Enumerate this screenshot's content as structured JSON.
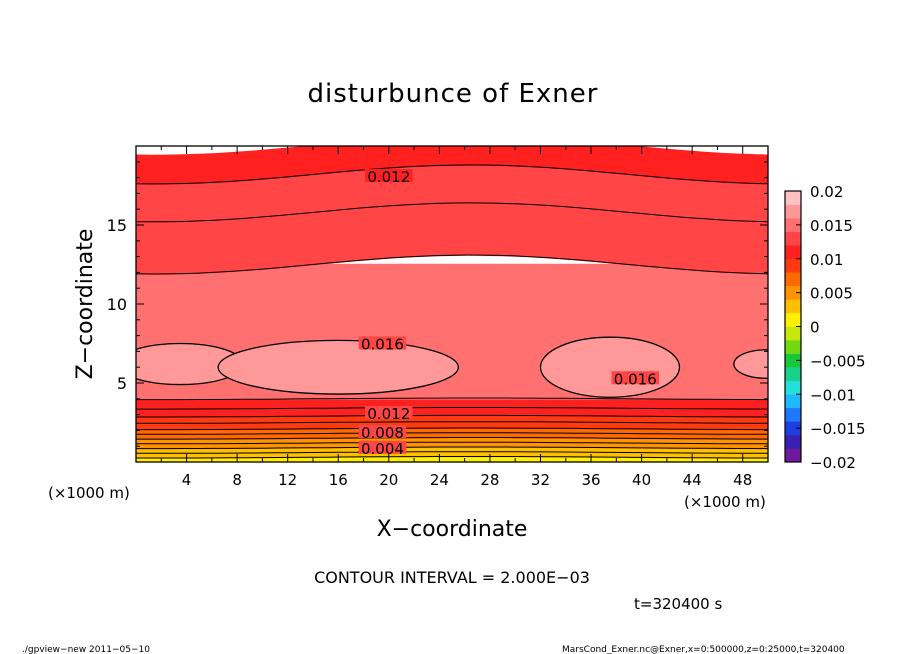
{
  "chart_data": {
    "type": "heatmap",
    "title": "disturbunce of Exner",
    "xlabel": "X−coordinate",
    "ylabel": "Z−coordinate",
    "x_unit_left": "(×1000 m)",
    "x_unit_right": "(×1000 m)",
    "xlim": [
      0,
      50
    ],
    "ylim": [
      0,
      20
    ],
    "x_ticks": [
      4,
      8,
      12,
      16,
      20,
      24,
      28,
      32,
      36,
      40,
      44,
      48
    ],
    "y_ticks": [
      5,
      10,
      15
    ],
    "contour_interval_text": "CONTOUR INTERVAL = 2.000E−03",
    "time_text": "t=320400 s",
    "contour_labels": [
      {
        "text": "0.012",
        "x": 20.0,
        "z": 18.1
      },
      {
        "text": "0.016",
        "x": 19.5,
        "z": 7.5
      },
      {
        "text": "0.016",
        "x": 39.5,
        "z": 5.3
      },
      {
        "text": "0.012",
        "x": 20.0,
        "z": 3.1
      },
      {
        "text": "0.008",
        "x": 19.5,
        "z": 1.9
      },
      {
        "text": "0.004",
        "x": 19.5,
        "z": 0.9
      }
    ],
    "field_bands": [
      {
        "z": [
          0.0,
          0.3
        ],
        "value": 0.0015
      },
      {
        "z": [
          0.3,
          0.6
        ],
        "value": 0.0025
      },
      {
        "z": [
          0.6,
          0.9
        ],
        "value": 0.0035
      },
      {
        "z": [
          0.9,
          1.2
        ],
        "value": 0.0045
      },
      {
        "z": [
          1.2,
          1.5
        ],
        "value": 0.0055
      },
      {
        "z": [
          1.5,
          1.8
        ],
        "value": 0.0065
      },
      {
        "z": [
          1.8,
          2.1
        ],
        "value": 0.0075
      },
      {
        "z": [
          2.1,
          2.5
        ],
        "value": 0.0085
      },
      {
        "z": [
          2.5,
          2.9
        ],
        "value": 0.0095
      },
      {
        "z": [
          2.9,
          3.4
        ],
        "value": 0.0105
      },
      {
        "z": [
          3.4,
          4.0
        ],
        "value": 0.0115
      },
      {
        "z": [
          4.0,
          12.5
        ],
        "value": 0.0145
      },
      {
        "z": [
          12.5,
          15.8
        ],
        "value": 0.0135
      },
      {
        "z": [
          15.8,
          18.2
        ],
        "value": 0.0125
      },
      {
        "z": [
          18.2,
          20.0
        ],
        "value": 0.0115
      }
    ],
    "high_patches": [
      {
        "cx": 3.5,
        "cz": 6.2,
        "rx": 5.0,
        "rz": 1.3
      },
      {
        "cx": 16.0,
        "cz": 6.0,
        "rx": 9.5,
        "rz": 1.7
      },
      {
        "cx": 37.5,
        "cz": 6.0,
        "rx": 5.5,
        "rz": 1.9
      },
      {
        "cx": 49.8,
        "cz": 6.2,
        "rx": 2.5,
        "rz": 0.9
      }
    ],
    "colorbar": {
      "ticks": [
        "0.02",
        "0.015",
        "0.01",
        "0.005",
        "0",
        "−0.005",
        "−0.01",
        "−0.015",
        "−0.02"
      ],
      "range": [
        -0.02,
        0.02
      ],
      "colors": [
        "#6f1a9e",
        "#3a1fb3",
        "#1f3fe0",
        "#1f78ff",
        "#20b8ff",
        "#24e0d8",
        "#19d28a",
        "#18c83a",
        "#6fda10",
        "#c6e80a",
        "#fff000",
        "#ffc000",
        "#ff9400",
        "#ff6a00",
        "#ff3a10",
        "#ff2020",
        "#ff4545",
        "#ff7070",
        "#ff9898",
        "#ffc2c2"
      ]
    }
  },
  "footer": {
    "left": "./gpview−new 2011−05−10",
    "right": "MarsCond_Exner.nc@Exner,x=0:500000,z=0:25000,t=320400"
  }
}
